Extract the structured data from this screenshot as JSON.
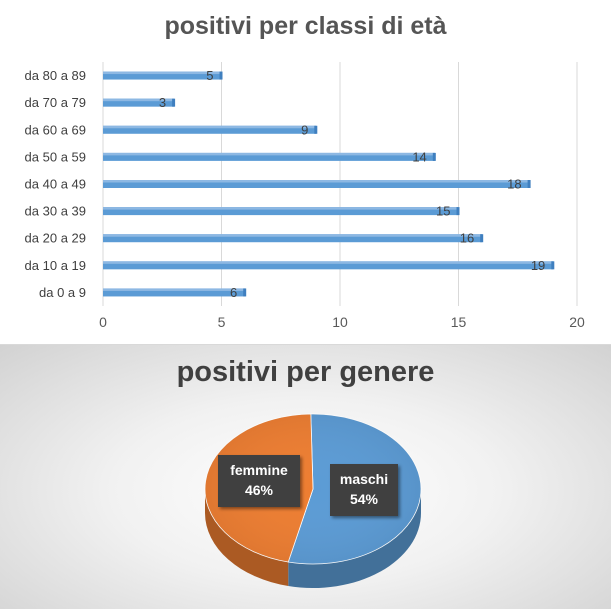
{
  "chart_data": [
    {
      "type": "bar",
      "orientation": "horizontal",
      "title": "positivi per classi di età",
      "categories": [
        "da 80 a 89",
        "da 70 a 79",
        "da 60 a 69",
        "da 50 a 59",
        "da 40 a 49",
        "da 30 a 39",
        "da 20 a 29",
        "da 10 a 19",
        "da 0 a 9"
      ],
      "values": [
        5,
        3,
        9,
        14,
        18,
        15,
        16,
        19,
        6
      ],
      "xlim": [
        0,
        20
      ],
      "xticks": [
        "0",
        "5",
        "10",
        "15",
        "20"
      ],
      "grid": true,
      "bar_color": "#5b9bd5",
      "data_labels": true
    },
    {
      "type": "pie",
      "title": "positivi per genere",
      "slices": [
        {
          "label": "maschi",
          "value": 54,
          "value_label": "54%",
          "color": "#5b9bd5"
        },
        {
          "label": "femmine",
          "value": 46,
          "value_label": "46%",
          "color": "#ed7d31"
        }
      ],
      "style": "3d"
    }
  ]
}
